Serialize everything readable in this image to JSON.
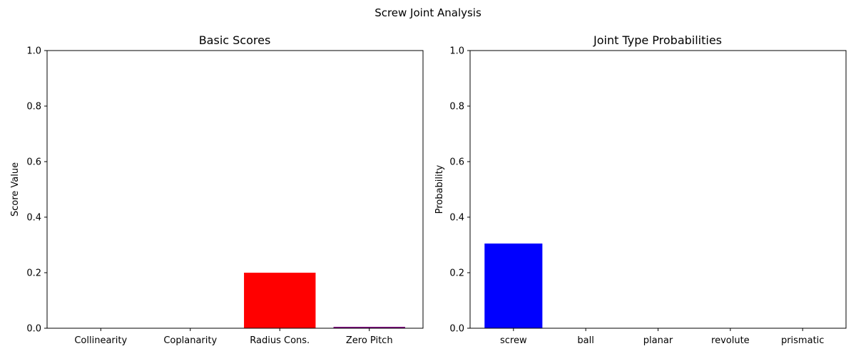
{
  "figure": {
    "suptitle": "Screw Joint Analysis"
  },
  "chart_data": [
    {
      "type": "bar",
      "title": "Basic Scores",
      "xlabel": "",
      "ylabel": "Score Value",
      "ylim": [
        0,
        1
      ],
      "yticks": [
        "0.0",
        "0.2",
        "0.4",
        "0.6",
        "0.8",
        "1.0"
      ],
      "grid": false,
      "categories": [
        "Collinearity",
        "Coplanarity",
        "Radius Cons.",
        "Zero Pitch"
      ],
      "values": [
        0.0,
        0.0,
        0.2,
        0.005
      ],
      "colors": [
        "#1f77b4",
        "#008000",
        "#ff0000",
        "#800080"
      ]
    },
    {
      "type": "bar",
      "title": "Joint Type Probabilities",
      "xlabel": "",
      "ylabel": "Probability",
      "ylim": [
        0,
        1
      ],
      "yticks": [
        "0.0",
        "0.2",
        "0.4",
        "0.6",
        "0.8",
        "1.0"
      ],
      "grid": false,
      "categories": [
        "screw",
        "ball",
        "planar",
        "revolute",
        "prismatic"
      ],
      "values": [
        0.305,
        0.0,
        0.0,
        0.0,
        0.0
      ],
      "colors": [
        "#0000ff",
        "#808080",
        "#808080",
        "#808080",
        "#808080"
      ]
    }
  ]
}
